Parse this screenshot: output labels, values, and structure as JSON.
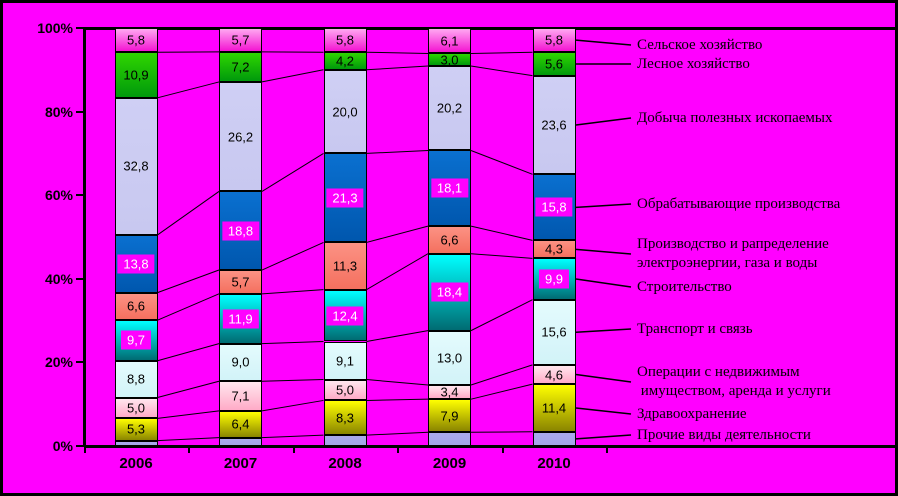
{
  "chart_data": {
    "type": "bar",
    "subtype": "stacked-100-percent",
    "title": "",
    "background_color": "#ff00ff",
    "grid": false,
    "legend_position": "right",
    "x_categories": [
      "2006",
      "2007",
      "2008",
      "2009",
      "2010"
    ],
    "y_ticks": [
      "0%",
      "20%",
      "40%",
      "60%",
      "80%",
      "100%"
    ],
    "y_range": [
      0,
      100
    ],
    "decimal_separator": ",",
    "series": [
      {
        "name": "Сельское хозяйство",
        "name_lines": [
          "Сельское хозяйство"
        ],
        "values": [
          5.8,
          5.7,
          5.8,
          6.1,
          5.8
        ],
        "label_style": "plain",
        "color": {
          "top": "#ffa8f1",
          "bottom": "#f414d2"
        }
      },
      {
        "name": "Лесное хозяйство",
        "name_lines": [
          "Лесное хозяйство"
        ],
        "values": [
          10.9,
          7.2,
          4.2,
          3.0,
          5.6
        ],
        "label_style": "plain",
        "color": {
          "top": "#2fd600",
          "bottom": "#00990c"
        }
      },
      {
        "name": "Добыча полезных ископаемых",
        "name_lines": [
          "Добыча полезных ископаемых"
        ],
        "values": [
          32.8,
          26.2,
          20.0,
          20.2,
          23.6
        ],
        "label_style": "plain",
        "texture": "dots",
        "color": {
          "top": "#cfcff4",
          "bottom": "#c8c8f0"
        }
      },
      {
        "name": "Обрабатывающие производства",
        "name_lines": [
          "Обрабатывающие производства"
        ],
        "values": [
          13.8,
          18.8,
          21.3,
          18.1,
          15.8
        ],
        "label_style": "boxed",
        "color": {
          "top": "#0a70d0",
          "bottom": "#0057ae"
        }
      },
      {
        "name": "Производство и рапределение электроэнергии, газа и воды",
        "name_lines": [
          "Производство и рапределение",
          "электроэнергии, газа и воды"
        ],
        "values": [
          6.6,
          5.7,
          11.3,
          6.6,
          4.3
        ],
        "label_style": "plain",
        "color": {
          "top": "#fc9284",
          "bottom": "#f4705f"
        }
      },
      {
        "name": "Строительство",
        "name_lines": [
          "Строительство"
        ],
        "values": [
          9.7,
          11.9,
          12.4,
          18.4,
          9.9
        ],
        "label_style": "boxed",
        "color": {
          "top": "#00ffff",
          "bottom": "#006b72"
        }
      },
      {
        "name": "Транспорт и связь",
        "name_lines": [
          "Транспорт и связь"
        ],
        "values": [
          8.8,
          9.0,
          9.1,
          13.0,
          15.6
        ],
        "label_style": "plain",
        "color": {
          "top": "#e4fbfd",
          "bottom": "#d2f3f8"
        }
      },
      {
        "name": "Операции с недвижимым имуществом, аренда и услуги",
        "name_lines": [
          "Операции с недвижимым",
          " имуществом, аренда и услуги"
        ],
        "values": [
          5.0,
          7.1,
          5.0,
          3.4,
          4.6
        ],
        "label_style": "plain",
        "color": {
          "top": "#ffe6ee",
          "bottom": "#ffabc7"
        }
      },
      {
        "name": "Здравоохранение",
        "name_lines": [
          "Здравоохранение"
        ],
        "values": [
          5.3,
          6.4,
          8.3,
          7.9,
          11.4
        ],
        "label_style": "plain",
        "color": {
          "top": "#ffff00",
          "bottom": "#8a8500"
        }
      },
      {
        "name": "Прочие виды деятельности",
        "name_lines": [
          "Прочие виды деятельности"
        ],
        "values": [
          1.3,
          2.0,
          2.6,
          3.3,
          3.4
        ],
        "label_style": "none",
        "labels_shown": false,
        "color": {
          "top": "#a9a9ec",
          "bottom": "#a4a4e8"
        }
      }
    ]
  }
}
